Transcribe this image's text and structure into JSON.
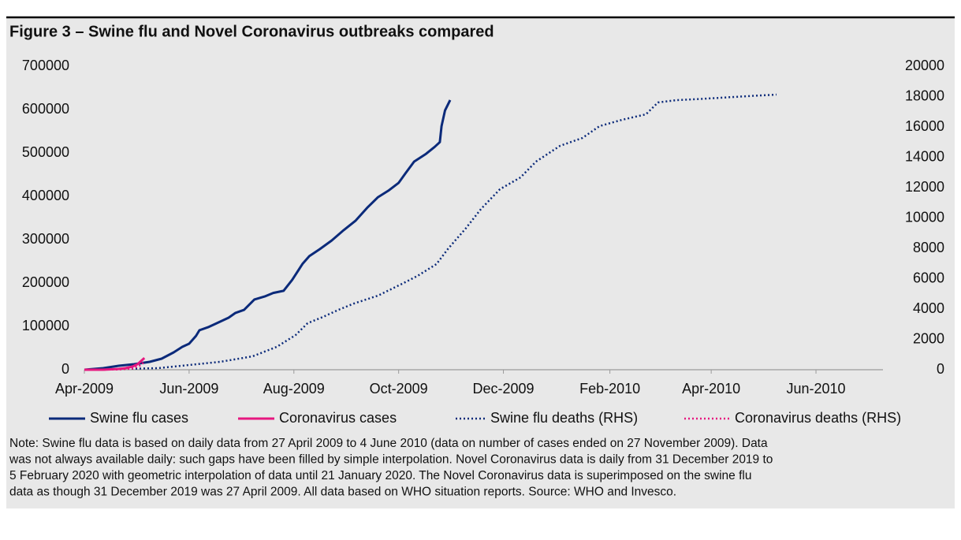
{
  "chart_data": {
    "type": "line",
    "title": "Figure 3 – Swine flu and Novel Coronavirus outbreaks compared",
    "xlim": [
      "2009-04-27",
      "2010-08-05"
    ],
    "xticks": [
      {
        "value": "2009-04-27",
        "label": "Apr-2009"
      },
      {
        "value": "2009-06-27",
        "label": "Jun-2009"
      },
      {
        "value": "2009-08-27",
        "label": "Aug-2009"
      },
      {
        "value": "2009-10-27",
        "label": "Oct-2009"
      },
      {
        "value": "2009-12-27",
        "label": "Dec-2009"
      },
      {
        "value": "2010-02-27",
        "label": "Feb-2010"
      },
      {
        "value": "2010-04-27",
        "label": "Apr-2010"
      },
      {
        "value": "2010-06-27",
        "label": "Jun-2010"
      }
    ],
    "ylim": [
      0,
      700000
    ],
    "yticks": [
      0,
      100000,
      200000,
      300000,
      400000,
      500000,
      600000,
      700000
    ],
    "y2lim": [
      0,
      20000
    ],
    "y2ticks": [
      0,
      2000,
      4000,
      6000,
      8000,
      10000,
      12000,
      14000,
      16000,
      18000,
      20000
    ],
    "series": [
      {
        "name": "Swine flu cases",
        "color": "#0b2a7a",
        "linestyle": "solid",
        "x": [
          "2009-04-27",
          "2009-05-08",
          "2009-05-17",
          "2009-05-26",
          "2009-06-04",
          "2009-06-11",
          "2009-06-18",
          "2009-06-23",
          "2009-06-27",
          "2009-07-01",
          "2009-07-03",
          "2009-07-08",
          "2009-07-13",
          "2009-07-20",
          "2009-07-24",
          "2009-07-29",
          "2009-08-04",
          "2009-08-10",
          "2009-08-15",
          "2009-08-21",
          "2009-08-26",
          "2009-09-01",
          "2009-09-05",
          "2009-09-11",
          "2009-09-18",
          "2009-09-25",
          "2009-10-02",
          "2009-10-09",
          "2009-10-15",
          "2009-10-21",
          "2009-10-27",
          "2009-10-31",
          "2009-11-05",
          "2009-11-12",
          "2009-11-17",
          "2009-11-20",
          "2009-11-21",
          "2009-11-23",
          "2009-11-26"
        ],
        "values": [
          0,
          3600,
          9100,
          12700,
          18200,
          25500,
          40000,
          52700,
          60000,
          78000,
          91000,
          98000,
          107000,
          120000,
          131000,
          138000,
          162000,
          169000,
          177000,
          182000,
          207000,
          244000,
          262000,
          278000,
          298000,
          322000,
          344000,
          375000,
          398000,
          413000,
          431000,
          453000,
          480000,
          498000,
          514000,
          525000,
          562000,
          598000,
          622000
        ]
      },
      {
        "name": "Coronavirus cases",
        "color": "#e6177f",
        "linestyle": "solid",
        "x": [
          "2009-04-27",
          "2009-05-08",
          "2009-05-17",
          "2009-05-21",
          "2009-05-25",
          "2009-05-28",
          "2009-05-30",
          "2009-06-01"
        ],
        "values": [
          0,
          0,
          1800,
          3600,
          7300,
          12700,
          20000,
          27000
        ]
      },
      {
        "name": "Swine flu deaths (RHS)",
        "color": "#0b2a7a",
        "linestyle": "dotted",
        "axis": "y2",
        "x": [
          "2009-04-27",
          "2009-06-09",
          "2009-06-27",
          "2009-07-15",
          "2009-08-03",
          "2009-08-17",
          "2009-08-28",
          "2009-09-04",
          "2009-09-13",
          "2009-09-22",
          "2009-10-01",
          "2009-10-15",
          "2009-10-29",
          "2009-11-07",
          "2009-11-18",
          "2009-11-25",
          "2009-12-05",
          "2009-12-14",
          "2009-12-25",
          "2010-01-06",
          "2010-01-15",
          "2010-01-29",
          "2010-02-11",
          "2010-02-21",
          "2010-03-06",
          "2010-03-20",
          "2010-03-27",
          "2010-04-07",
          "2010-04-25",
          "2010-05-18",
          "2010-06-04"
        ],
        "values": [
          0,
          104,
          312,
          520,
          883,
          1506,
          2286,
          3065,
          3481,
          3948,
          4364,
          4883,
          5662,
          6182,
          6961,
          8000,
          9299,
          10597,
          11896,
          12675,
          13714,
          14753,
          15273,
          16052,
          16468,
          16831,
          17610,
          17766,
          17870,
          18026,
          18130
        ]
      },
      {
        "name": "Coronavirus deaths (RHS)",
        "color": "#e6177f",
        "linestyle": "dotted",
        "axis": "y2",
        "x": [
          "2009-04-27",
          "2009-05-17",
          "2009-05-25",
          "2009-05-30",
          "2009-06-01"
        ],
        "values": [
          0,
          17,
          80,
          300,
          560
        ]
      }
    ],
    "note": [
      "Note: Swine flu data is based on daily data from 27 April 2009 to 4 June 2010 (data on number of cases ended on 27 November 2009). Data",
      "was not always available daily: such gaps have been filled by simple interpolation. Novel Coronavirus data is daily from 31 December 2019 to",
      "5 February 2020 with geometric interpolation of data until 21 January 2020. The Novel Coronavirus data is superimposed on the swine flu",
      "data as though 31 December 2019 was 27 April 2009. All data based on WHO situation reports. Source: WHO and Invesco."
    ]
  }
}
